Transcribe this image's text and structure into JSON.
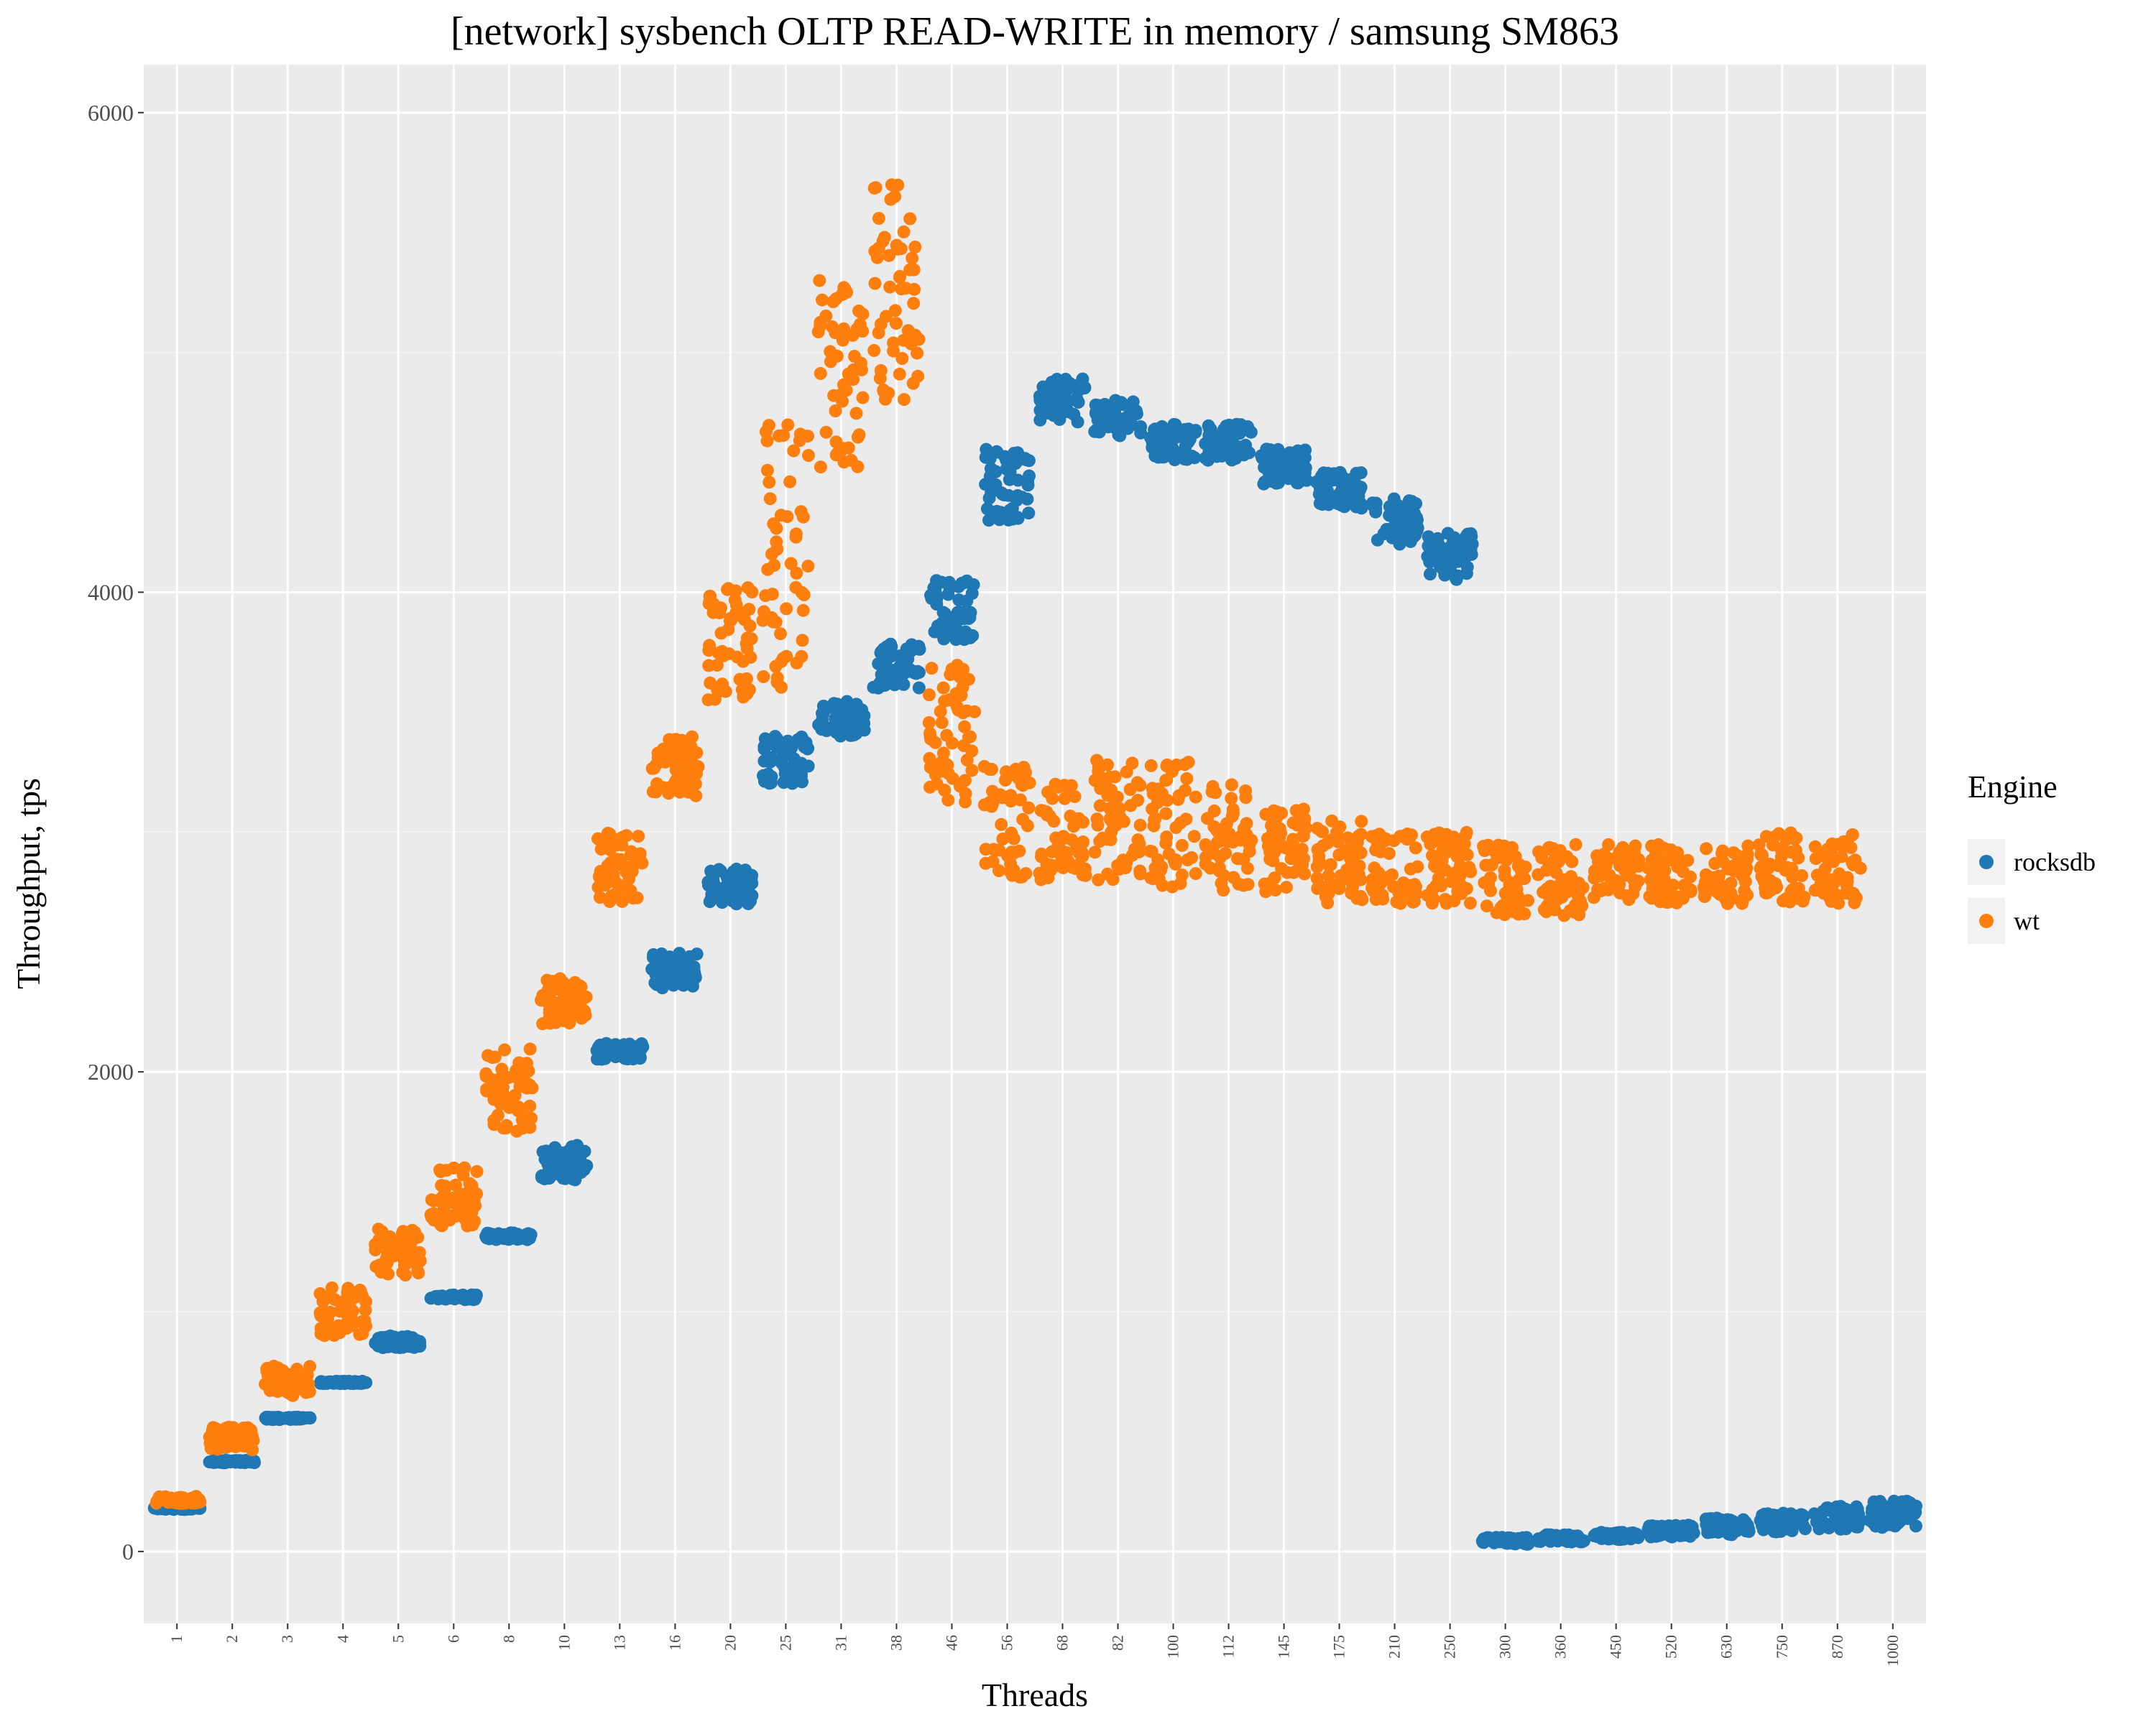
{
  "chart_data": {
    "type": "scatter",
    "title": "[network] sysbench OLTP READ-WRITE in memory / samsung SM863",
    "xlabel": "Threads",
    "ylabel": "Throughput, tps",
    "x_categories": [
      "1",
      "2",
      "3",
      "4",
      "5",
      "6",
      "8",
      "10",
      "13",
      "16",
      "20",
      "25",
      "31",
      "38",
      "46",
      "56",
      "68",
      "82",
      "100",
      "112",
      "145",
      "175",
      "210",
      "250",
      "300",
      "360",
      "450",
      "520",
      "630",
      "750",
      "870",
      "1000"
    ],
    "yticks": [
      0,
      2000,
      4000,
      6000
    ],
    "ylim": [
      -300,
      6200
    ],
    "grid": true,
    "legend": {
      "title": "Engine",
      "position": "right"
    },
    "series": [
      {
        "name": "rocksdb",
        "color": "#1f77b4",
        "values": [
          {
            "x": "1",
            "y": [
              175,
              185
            ]
          },
          {
            "x": "2",
            "y": [
              370,
              380
            ]
          },
          {
            "x": "3",
            "y": [
              550,
              560
            ]
          },
          {
            "x": "4",
            "y": [
              700,
              710
            ]
          },
          {
            "x": "5",
            "y": [
              850,
              900
            ]
          },
          {
            "x": "6",
            "y": [
              1050,
              1070
            ]
          },
          {
            "x": "8",
            "y": [
              1300,
              1330
            ]
          },
          {
            "x": "10",
            "y": [
              1550,
              1700
            ]
          },
          {
            "x": "13",
            "y": [
              2050,
              2120
            ]
          },
          {
            "x": "16",
            "y": [
              2350,
              2500
            ]
          },
          {
            "x": "20",
            "y": [
              2700,
              2850
            ]
          },
          {
            "x": "25",
            "y": [
              3200,
              3400
            ]
          },
          {
            "x": "31",
            "y": [
              3400,
              3550
            ]
          },
          {
            "x": "38",
            "y": [
              3600,
              3800
            ]
          },
          {
            "x": "46",
            "y": [
              3800,
              4050
            ]
          },
          {
            "x": "56",
            "y": [
              4300,
              4600
            ]
          },
          {
            "x": "68",
            "y": [
              4700,
              4900
            ]
          },
          {
            "x": "82",
            "y": [
              4650,
              4800
            ]
          },
          {
            "x": "100",
            "y": [
              4550,
              4700
            ]
          },
          {
            "x": "112",
            "y": [
              4550,
              4700
            ]
          },
          {
            "x": "145",
            "y": [
              4450,
              4600
            ]
          },
          {
            "x": "175",
            "y": [
              4350,
              4500
            ]
          },
          {
            "x": "210",
            "y": [
              4200,
              4400
            ]
          },
          {
            "x": "250",
            "y": [
              4050,
              4250
            ]
          },
          {
            "x": "300",
            "y": [
              30,
              60
            ]
          },
          {
            "x": "360",
            "y": [
              40,
              70
            ]
          },
          {
            "x": "450",
            "y": [
              50,
              80
            ]
          },
          {
            "x": "520",
            "y": [
              60,
              110
            ]
          },
          {
            "x": "630",
            "y": [
              70,
              140
            ]
          },
          {
            "x": "750",
            "y": [
              80,
              160
            ]
          },
          {
            "x": "870",
            "y": [
              90,
              190
            ]
          },
          {
            "x": "1000",
            "y": [
              100,
              210
            ]
          }
        ]
      },
      {
        "name": "wt",
        "color": "#ff7f0e",
        "values": [
          {
            "x": "1",
            "y": [
              200,
              230
            ]
          },
          {
            "x": "2",
            "y": [
              420,
              520
            ]
          },
          {
            "x": "3",
            "y": [
              650,
              780
            ]
          },
          {
            "x": "4",
            "y": [
              900,
              1100
            ]
          },
          {
            "x": "5",
            "y": [
              1150,
              1350
            ]
          },
          {
            "x": "6",
            "y": [
              1350,
              1600
            ]
          },
          {
            "x": "8",
            "y": [
              1750,
              2100
            ]
          },
          {
            "x": "10",
            "y": [
              2200,
              2400
            ]
          },
          {
            "x": "13",
            "y": [
              2700,
              3000
            ]
          },
          {
            "x": "16",
            "y": [
              3150,
              3400
            ]
          },
          {
            "x": "20",
            "y": [
              3550,
              4050
            ]
          },
          {
            "x": "25",
            "y": [
              3600,
              4700
            ]
          },
          {
            "x": "31",
            "y": [
              4500,
              5300
            ]
          },
          {
            "x": "38",
            "y": [
              4800,
              5700
            ]
          },
          {
            "x": "46",
            "y": [
              3100,
              3700
            ]
          },
          {
            "x": "56",
            "y": [
              2800,
              3300
            ]
          },
          {
            "x": "68",
            "y": [
              2800,
              3200
            ]
          },
          {
            "x": "82",
            "y": [
              2800,
              3300
            ]
          },
          {
            "x": "100",
            "y": [
              2750,
              3300
            ]
          },
          {
            "x": "112",
            "y": [
              2750,
              3200
            ]
          },
          {
            "x": "145",
            "y": [
              2750,
              3100
            ]
          },
          {
            "x": "175",
            "y": [
              2700,
              3050
            ]
          },
          {
            "x": "210",
            "y": [
              2700,
              3000
            ]
          },
          {
            "x": "250",
            "y": [
              2700,
              3000
            ]
          },
          {
            "x": "300",
            "y": [
              2650,
              2950
            ]
          },
          {
            "x": "360",
            "y": [
              2650,
              2950
            ]
          },
          {
            "x": "450",
            "y": [
              2700,
              2950
            ]
          },
          {
            "x": "520",
            "y": [
              2700,
              2950
            ]
          },
          {
            "x": "630",
            "y": [
              2700,
              2950
            ]
          },
          {
            "x": "750",
            "y": [
              2700,
              3000
            ]
          },
          {
            "x": "870",
            "y": [
              2700,
              3000
            ]
          }
        ]
      }
    ]
  }
}
